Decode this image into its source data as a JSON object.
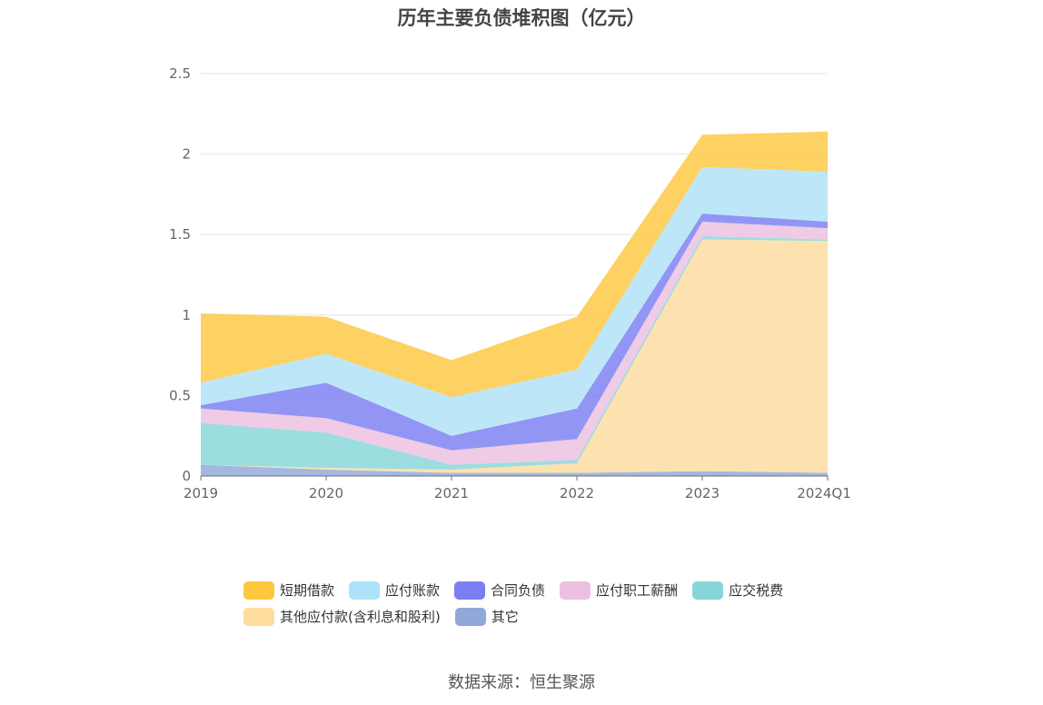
{
  "chart_data": {
    "type": "area",
    "title": "历年主要负债堆积图（亿元）",
    "stacked": true,
    "categories": [
      "2019",
      "2020",
      "2021",
      "2022",
      "2023",
      "2024Q1"
    ],
    "ylim": [
      0,
      2.5
    ],
    "yticks": [
      "0",
      "0.5",
      "1",
      "1.5",
      "2",
      "2.5"
    ],
    "grid": true,
    "legend_position": "bottom",
    "series": [
      {
        "name": "其它",
        "color": "#8fa8d8",
        "values": [
          0.07,
          0.04,
          0.02,
          0.02,
          0.03,
          0.02
        ]
      },
      {
        "name": "其他应付款(含利息和股利)",
        "color": "#fddc9e",
        "values": [
          0.0,
          0.01,
          0.02,
          0.06,
          1.44,
          1.44
        ]
      },
      {
        "name": "应交税费",
        "color": "#86d5d9",
        "values": [
          0.26,
          0.22,
          0.03,
          0.02,
          0.02,
          0.01
        ]
      },
      {
        "name": "应付职工薪酬",
        "color": "#ecbfe0",
        "values": [
          0.09,
          0.09,
          0.09,
          0.13,
          0.09,
          0.07
        ]
      },
      {
        "name": "合同负债",
        "color": "#7a7ef2",
        "values": [
          0.02,
          0.22,
          0.09,
          0.19,
          0.05,
          0.04
        ]
      },
      {
        "name": "应付账款",
        "color": "#aee2f8",
        "values": [
          0.14,
          0.18,
          0.24,
          0.24,
          0.29,
          0.31
        ]
      },
      {
        "name": "短期借款",
        "color": "#fdc73f",
        "values": [
          0.43,
          0.23,
          0.23,
          0.33,
          0.2,
          0.25
        ]
      }
    ]
  },
  "legend": {
    "row1": [
      "短期借款",
      "应付账款",
      "合同负债",
      "应付职工薪酬",
      "应交税费"
    ],
    "row2": [
      "其他应付款(含利息和股利)",
      "其它"
    ]
  },
  "source": "数据来源：恒生聚源"
}
